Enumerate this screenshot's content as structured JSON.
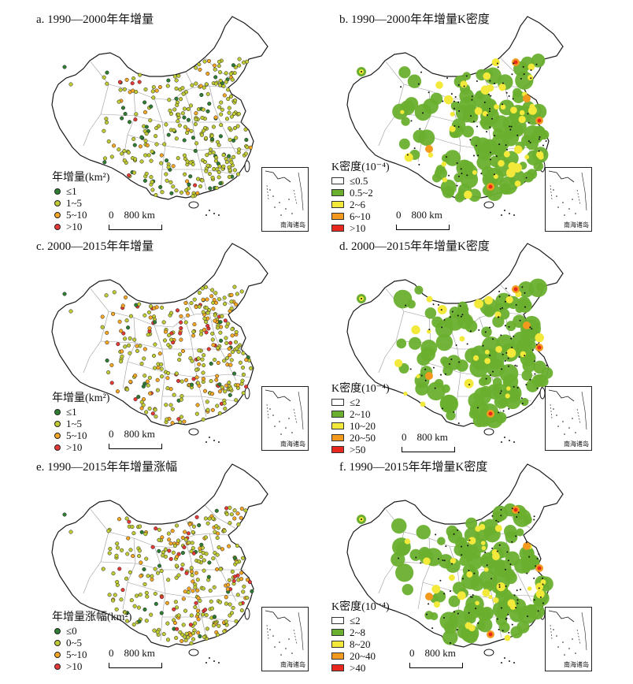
{
  "colors": {
    "dot_le1": "#2e7d32",
    "dot_1_5": "#c0ca33",
    "dot_5_10": "#f5a623",
    "dot_gt10": "#e53935",
    "k_low": "#ffffff",
    "k_2": "#6aaf2e",
    "k_3": "#f2e93a",
    "k_4": "#f39a1e",
    "k_5": "#e8281e",
    "outline": "#1a1a1a",
    "province": "#9a9a9a"
  },
  "inset_label": "南海诸岛",
  "panels": [
    {
      "id": "a",
      "title": "a. 1990—2000年年增量",
      "type": "points",
      "legend_title": "年增量(km²)",
      "legend": [
        "≤1",
        "1~5",
        "5~10",
        ">10"
      ],
      "scale_label": "0    800 km"
    },
    {
      "id": "b",
      "title": "b. 1990—2000年年增量K密度",
      "type": "density",
      "legend_title": "K密度(10⁻⁴)",
      "legend": [
        "≤0.5",
        "0.5~2",
        "2~6",
        "6~10",
        ">10"
      ],
      "scale_label": "0    800 km"
    },
    {
      "id": "c",
      "title": "c. 2000—2015年年增量",
      "type": "points",
      "legend_title": "年增量(km²)",
      "legend": [
        "≤1",
        "1~5",
        "5~10",
        ">10"
      ],
      "scale_label": "0    800 km"
    },
    {
      "id": "d",
      "title": "d. 2000—2015年年增量K密度",
      "type": "density",
      "legend_title": "K密度(10⁻⁴)",
      "legend": [
        "≤2",
        "2~10",
        "10~20",
        "20~50",
        ">50"
      ],
      "scale_label": "0    800 km"
    },
    {
      "id": "e",
      "title": "e. 1990—2015年年增量涨幅",
      "type": "points",
      "legend_title": "年增量涨幅(km²)",
      "legend": [
        "≤0",
        "0~5",
        "5~10",
        ">10"
      ],
      "scale_label": "0    800 km"
    },
    {
      "id": "f",
      "title": "f. 1990—2015年年增量K密度",
      "type": "density",
      "legend_title": "K密度(10⁻⁴)",
      "legend": [
        "≤2",
        "2~8",
        "8~20",
        "20~40",
        ">40"
      ],
      "scale_label": "0    800 km"
    }
  ]
}
